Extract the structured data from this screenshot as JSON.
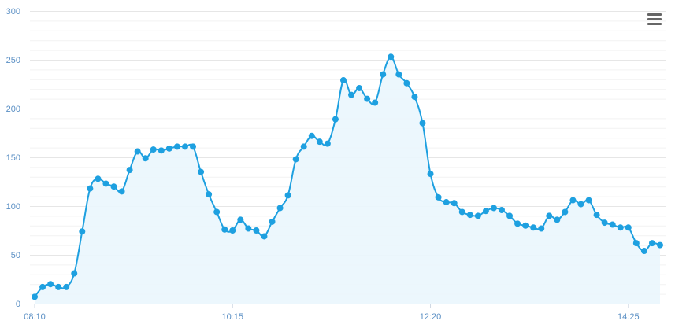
{
  "chart_data": {
    "type": "area",
    "x_tick_labels": [
      "08:10",
      "10:15",
      "12:20",
      "14:25"
    ],
    "y_tick_labels": [
      "0",
      "50",
      "100",
      "150",
      "200",
      "250",
      "300"
    ],
    "ylim": [
      0,
      300
    ],
    "grid": true,
    "colors": {
      "line": "#1ea0e0",
      "fill": "#eaf6fd",
      "axis_text": "#5a8fc4"
    },
    "series": [
      {
        "values": [
          7,
          17,
          20,
          17,
          17,
          31,
          74,
          118,
          128,
          123,
          120,
          115,
          137,
          156,
          149,
          158,
          157,
          159,
          161,
          161,
          161,
          135,
          112,
          94,
          76,
          75,
          86,
          77,
          75,
          69,
          84,
          98,
          111,
          148,
          161,
          172,
          166,
          164,
          189,
          229,
          214,
          221,
          210,
          206,
          235,
          253,
          235,
          226,
          212,
          185,
          133,
          109,
          104,
          103,
          94,
          91,
          90,
          95,
          98,
          96,
          90,
          82,
          80,
          78,
          77,
          90,
          86,
          94,
          106,
          102,
          106,
          91,
          83,
          81,
          78,
          78,
          62,
          54,
          62,
          60
        ]
      }
    ]
  },
  "menu": {
    "icon": "hamburger-menu-icon"
  }
}
